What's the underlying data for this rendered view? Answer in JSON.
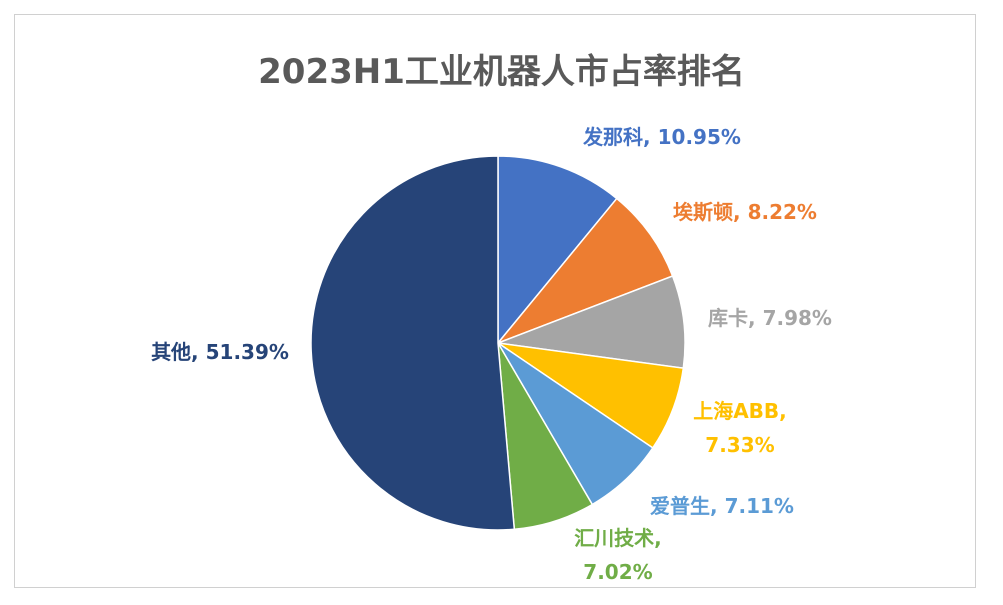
{
  "chart_data": {
    "type": "pie",
    "title": "2023H1工业机器人市占率排名",
    "categories": [
      "发那科",
      "埃斯顿",
      "库卡",
      "上海ABB",
      "爱普生",
      "汇川技术",
      "其他"
    ],
    "values": [
      10.95,
      8.22,
      7.98,
      7.33,
      7.11,
      7.02,
      51.39
    ],
    "value_labels": [
      "发那科, 10.95%",
      "埃斯顿, 8.22%",
      "库卡, 7.98%",
      "上海ABB, 7.33%",
      "爱普生, 7.11%",
      "汇川技术, 7.02%",
      "其他, 51.39%"
    ],
    "colors": [
      "#4472c4",
      "#ed7d31",
      "#a5a5a5",
      "#ffc000",
      "#5b9bd5",
      "#70ad47",
      "#264478"
    ]
  }
}
